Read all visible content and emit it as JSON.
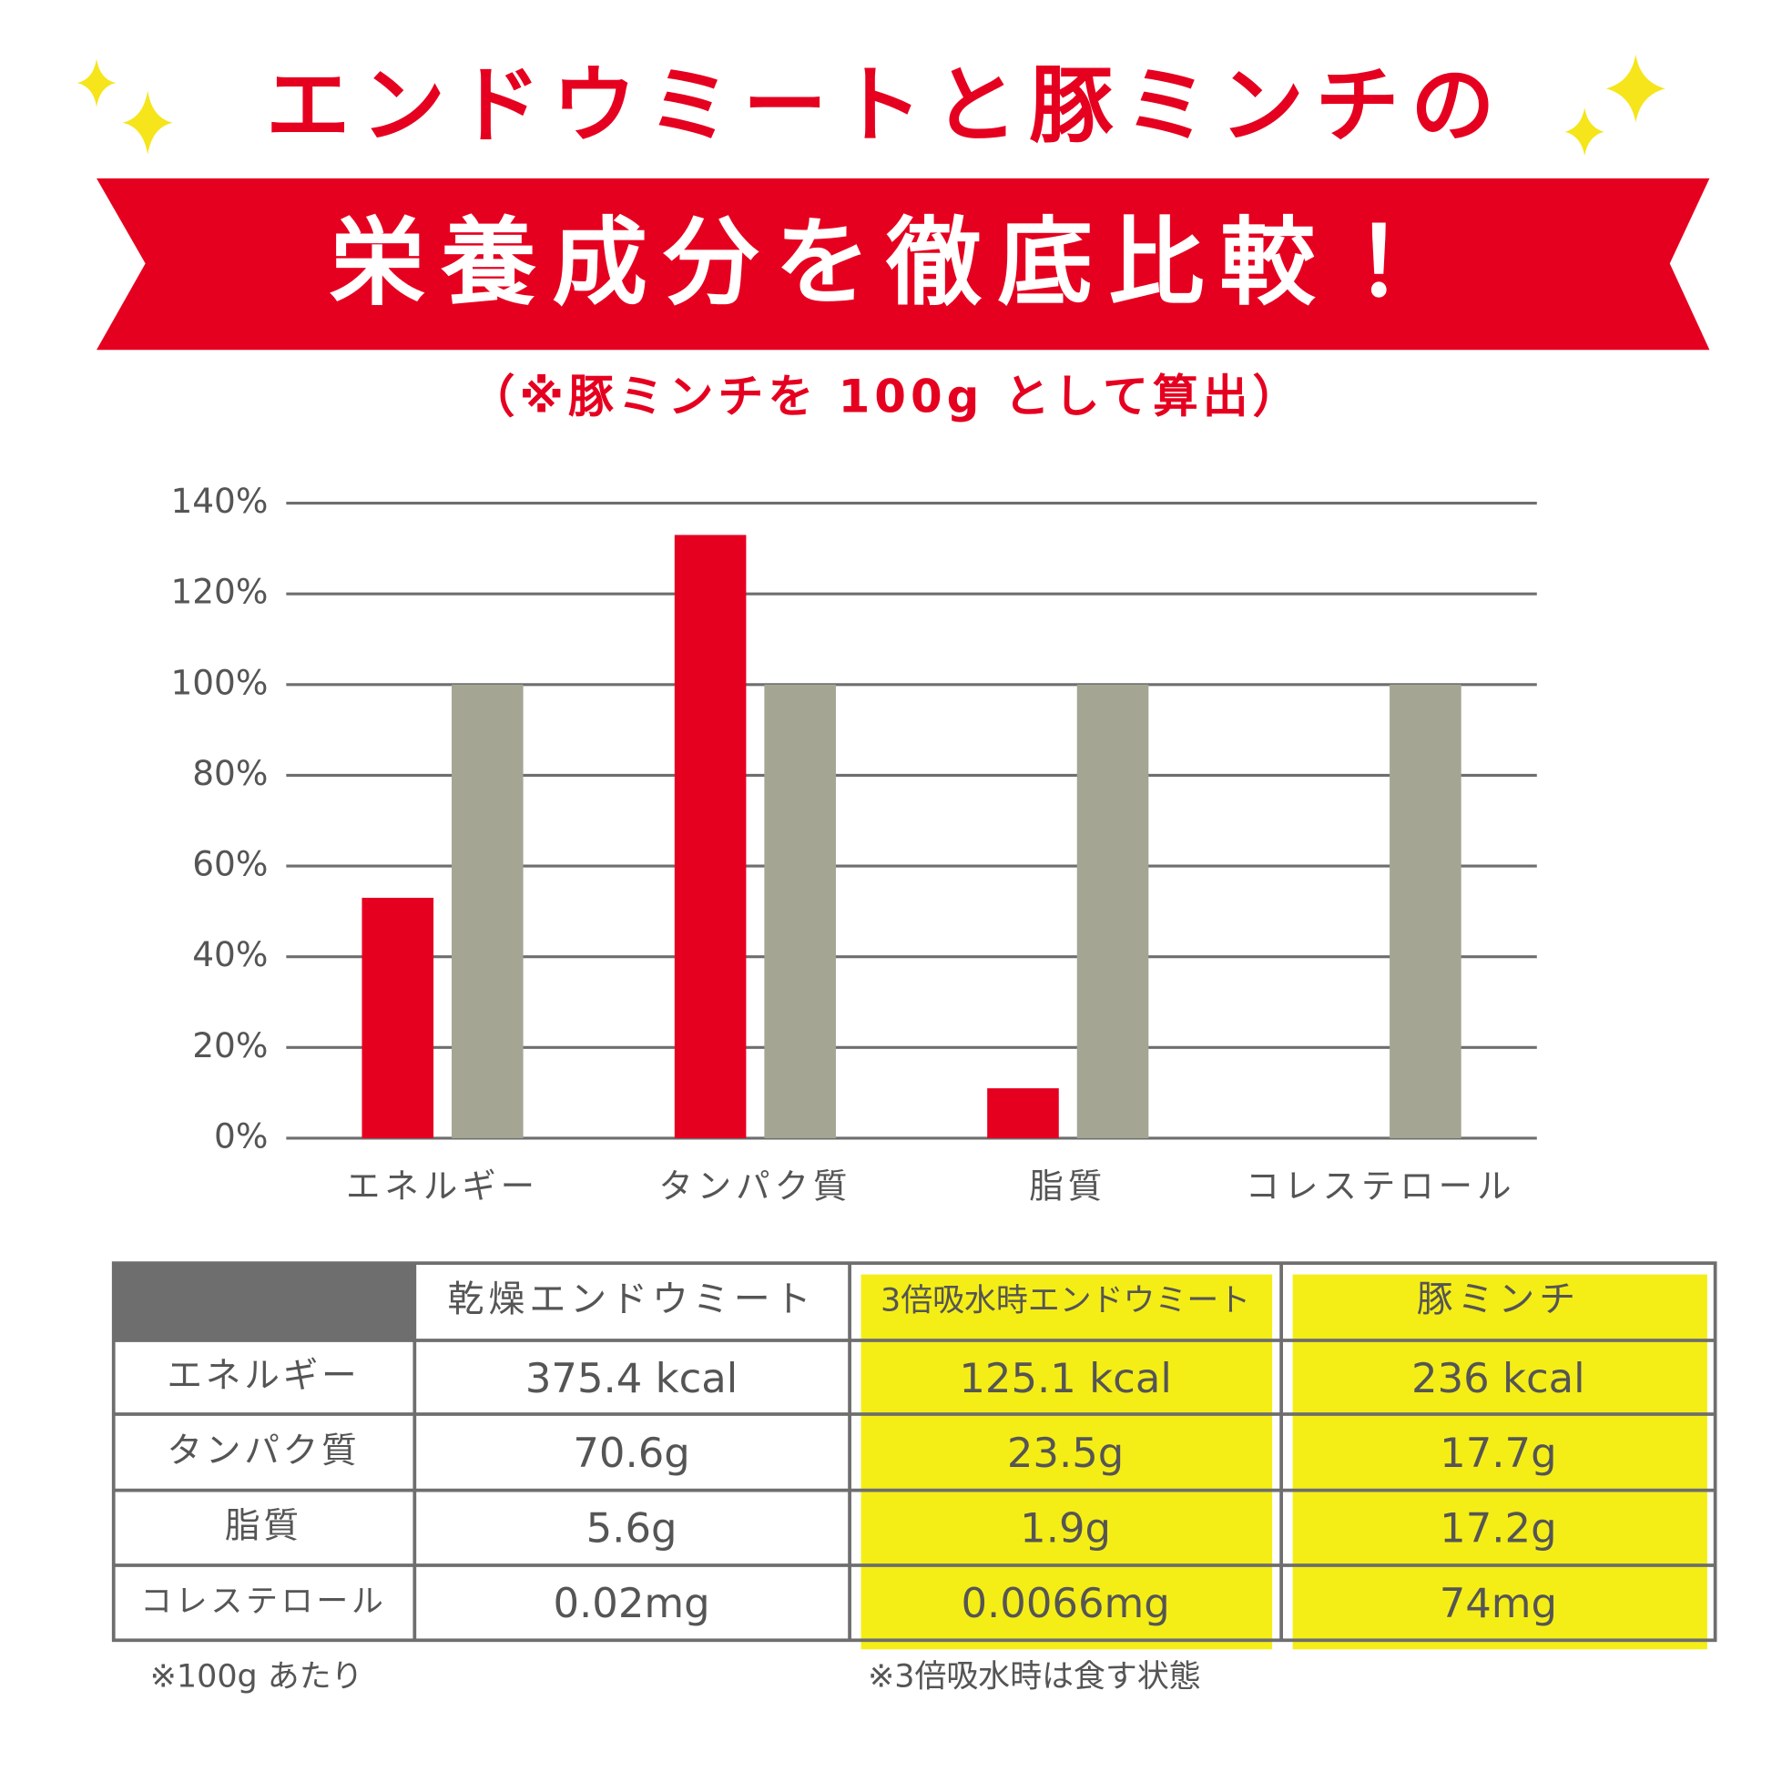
{
  "chart_data": {
    "type": "bar",
    "title": "エンドウミートと豚ミンチの",
    "subtitle": "栄養成分を徹底比較！",
    "note": "（※豚ミンチを 100g として算出）",
    "categories": [
      "エネルギー",
      "タンパク質",
      "脂質",
      "コレステロール"
    ],
    "series": [
      {
        "color": "#e60020",
        "values": [
          53,
          133,
          11,
          0
        ]
      },
      {
        "color": "#a5a594",
        "values": [
          100,
          100,
          100,
          100
        ]
      }
    ],
    "ylim": [
      0,
      140
    ],
    "yticks": [
      {
        "value": 0,
        "label": "0%"
      },
      {
        "value": 20,
        "label": "20%"
      },
      {
        "value": 40,
        "label": "40%"
      },
      {
        "value": 60,
        "label": "60%"
      },
      {
        "value": 80,
        "label": "80%"
      },
      {
        "value": 100,
        "label": "100%"
      },
      {
        "value": 120,
        "label": "120%"
      },
      {
        "value": 140,
        "label": "140%"
      }
    ],
    "grid": true
  },
  "table": {
    "columns": [
      "乾燥エンドウミート",
      "3倍吸水時エンドウミート",
      "豚ミンチ"
    ],
    "rows": [
      [
        "エネルギー",
        "375.4 kcal",
        "125.1 kcal",
        "236 kcal"
      ],
      [
        "タンパク質",
        "70.6g",
        "23.5g",
        "17.7g"
      ],
      [
        "脂質",
        "5.6g",
        "1.9g",
        "17.2g"
      ],
      [
        "コレステロール",
        "0.02mg",
        "0.0066mg",
        "74mg"
      ]
    ],
    "notes": [
      "※100g あたり",
      "※3倍吸水時は食す状態"
    ]
  }
}
